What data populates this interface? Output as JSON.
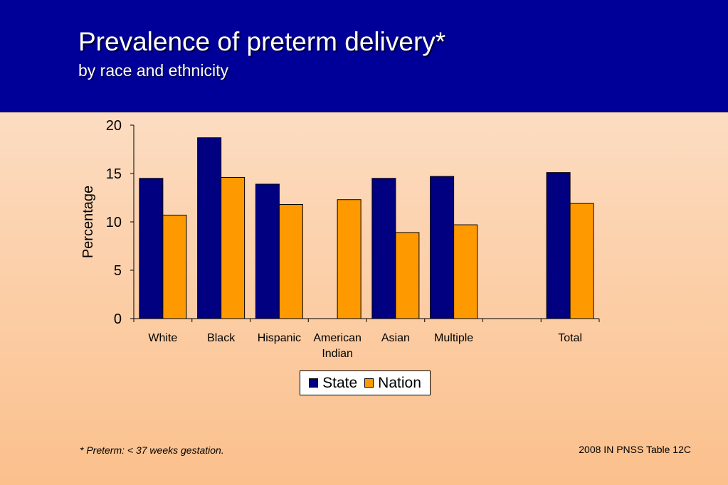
{
  "slide": {
    "title": "Prevalence of preterm delivery*",
    "subtitle": "by race and ethnicity",
    "footnote": "*  Preterm: < 37 weeks gestation.",
    "source": "2008 IN PNSS Table 12C"
  },
  "colors": {
    "state": "#000080",
    "nation": "#ff9900",
    "header": "#000099"
  },
  "chart_data": {
    "type": "bar",
    "categories": [
      [
        "White"
      ],
      [
        "Black"
      ],
      [
        "Hispanic"
      ],
      [
        "American",
        "Indian"
      ],
      [
        "Asian"
      ],
      [
        "Multiple"
      ],
      [
        ""
      ],
      [
        "Total"
      ]
    ],
    "series": [
      {
        "name": "State",
        "values": [
          14.5,
          18.7,
          13.9,
          null,
          14.5,
          14.7,
          null,
          15.1
        ]
      },
      {
        "name": "Nation",
        "values": [
          10.7,
          14.6,
          11.8,
          12.3,
          8.9,
          9.7,
          null,
          11.9
        ]
      }
    ],
    "ylabel": "Percentage",
    "ylim": [
      0,
      20
    ],
    "yticks": [
      "0",
      "5",
      "10",
      "15",
      "20"
    ],
    "legend_position": "bottom"
  }
}
